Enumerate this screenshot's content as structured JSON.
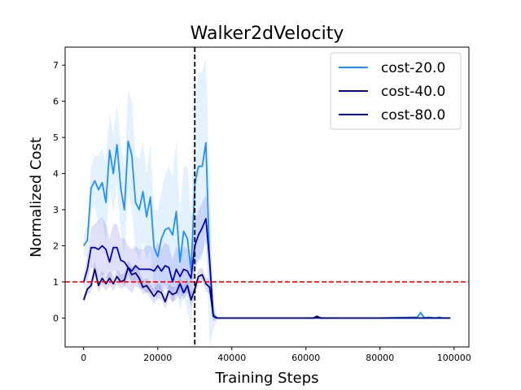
{
  "chart_data": {
    "type": "line",
    "title": "Walker2dVelocity",
    "xlabel": "Training Steps",
    "ylabel": "Normalized Cost",
    "xlim": [
      -5000,
      104000
    ],
    "ylim": [
      -0.8,
      7.5
    ],
    "xticks": [
      0,
      20000,
      40000,
      60000,
      80000,
      100000
    ],
    "yticks": [
      0,
      1,
      2,
      3,
      4,
      5,
      6,
      7
    ],
    "x_tick_labels": [
      "0",
      "20000",
      "40000",
      "60000",
      "80000",
      "100000"
    ],
    "y_tick_labels": [
      "0",
      "1",
      "2",
      "3",
      "4",
      "5",
      "6",
      "7"
    ],
    "grid": false,
    "legend_position": "top-right",
    "reference_lines": [
      {
        "orientation": "horizontal",
        "value": 1.0,
        "color": "#ff0000",
        "style": "dashed"
      },
      {
        "orientation": "vertical",
        "value": 30000,
        "color": "#000000",
        "style": "dashed"
      }
    ],
    "x": [
      0,
      1000,
      2000,
      3000,
      4000,
      5000,
      6000,
      7000,
      8000,
      9000,
      10000,
      11000,
      12000,
      13000,
      14000,
      15000,
      16000,
      17000,
      18000,
      19000,
      20000,
      21000,
      22000,
      23000,
      24000,
      25000,
      26000,
      27000,
      28000,
      29000,
      30000,
      31000,
      32000,
      33000,
      34000,
      35000,
      36000,
      37000,
      40000,
      50000,
      60000,
      62000,
      63000,
      64000,
      70000,
      80000,
      90000,
      91000,
      92000,
      93000,
      95000,
      96000,
      97000,
      99000
    ],
    "series": [
      {
        "name": "cost-20.0",
        "color": "#1e90ff",
        "values": [
          2.0,
          2.15,
          3.6,
          3.8,
          3.55,
          3.75,
          3.2,
          4.65,
          4.0,
          4.8,
          3.6,
          3.0,
          4.9,
          4.5,
          3.2,
          3.0,
          3.5,
          2.8,
          3.35,
          1.95,
          1.7,
          2.2,
          2.45,
          2.5,
          2.3,
          2.95,
          1.55,
          2.4,
          2.2,
          1.3,
          3.7,
          4.2,
          4.2,
          4.85,
          1.5,
          0.1,
          0.0,
          0.0,
          0.0,
          0.0,
          0.0,
          0.0,
          0.02,
          0.0,
          0.0,
          0.0,
          0.02,
          0.15,
          0.0,
          0.02,
          0.0,
          0.02,
          0.0,
          0.0
        ],
        "band_upper": [
          2.3,
          2.6,
          4.2,
          4.5,
          4.5,
          4.7,
          4.3,
          5.7,
          5.1,
          5.9,
          4.8,
          4.2,
          6.3,
          6.0,
          4.5,
          4.4,
          4.9,
          4.0,
          4.8,
          3.0,
          3.0,
          3.5,
          4.0,
          4.2,
          3.9,
          4.9,
          2.9,
          4.2,
          4.2,
          2.9,
          6.0,
          6.8,
          6.8,
          7.2,
          3.8,
          0.5,
          0.05,
          0.02,
          0.02,
          0.02,
          0.02,
          0.03,
          0.06,
          0.03,
          0.02,
          0.02,
          0.06,
          0.25,
          0.05,
          0.06,
          0.03,
          0.06,
          0.03,
          0.02
        ],
        "band_lower": [
          1.7,
          1.7,
          3.0,
          3.1,
          2.6,
          2.8,
          2.1,
          3.6,
          2.9,
          3.7,
          2.4,
          1.8,
          3.5,
          3.0,
          1.9,
          1.6,
          2.1,
          1.6,
          1.9,
          0.9,
          0.4,
          0.9,
          0.9,
          0.8,
          0.7,
          1.0,
          0.2,
          0.6,
          0.2,
          -0.3,
          1.4,
          1.6,
          1.6,
          2.5,
          -0.8,
          -0.3,
          -0.05,
          -0.02,
          -0.02,
          -0.02,
          -0.02,
          -0.03,
          -0.02,
          -0.03,
          -0.02,
          -0.02,
          -0.02,
          0.05,
          -0.05,
          -0.02,
          -0.03,
          -0.02,
          -0.03,
          -0.02
        ]
      },
      {
        "name": "cost-40.0",
        "color": "#0000cd",
        "values": [
          1.0,
          1.35,
          1.95,
          1.95,
          1.9,
          2.0,
          1.9,
          1.55,
          1.95,
          1.95,
          1.6,
          1.55,
          1.4,
          1.3,
          1.45,
          1.35,
          1.35,
          1.35,
          1.35,
          1.3,
          1.45,
          1.3,
          1.45,
          1.4,
          1.0,
          1.35,
          1.15,
          1.35,
          1.3,
          1.1,
          2.0,
          2.3,
          2.5,
          2.75,
          1.6,
          0.05,
          0.0,
          0.0,
          0.0,
          0.0,
          0.0,
          0.0,
          0.0,
          0.0,
          0.0,
          0.0,
          0.0,
          0.0,
          0.0,
          0.0,
          0.0,
          0.0,
          0.0,
          0.0
        ],
        "band_upper": [
          1.2,
          1.7,
          2.5,
          2.6,
          2.7,
          2.8,
          2.6,
          2.2,
          2.6,
          2.6,
          2.2,
          2.2,
          2.0,
          1.9,
          2.0,
          1.9,
          1.9,
          2.0,
          2.0,
          1.9,
          2.1,
          1.9,
          2.1,
          2.0,
          1.6,
          2.0,
          1.8,
          2.0,
          1.9,
          1.7,
          2.7,
          3.0,
          3.2,
          3.4,
          2.2,
          0.2,
          0.02,
          0.02,
          0.02,
          0.02,
          0.02,
          0.02,
          0.02,
          0.02,
          0.02,
          0.02,
          0.02,
          0.02,
          0.02,
          0.02,
          0.02,
          0.02,
          0.02,
          0.02
        ],
        "band_lower": [
          0.8,
          1.0,
          1.4,
          1.3,
          1.1,
          1.2,
          1.2,
          0.9,
          1.3,
          1.3,
          1.0,
          0.9,
          0.8,
          0.7,
          0.9,
          0.8,
          0.8,
          0.7,
          0.7,
          0.7,
          0.8,
          0.7,
          0.8,
          0.8,
          0.4,
          0.7,
          0.5,
          0.7,
          0.7,
          0.5,
          1.3,
          1.6,
          1.8,
          2.1,
          1.0,
          -0.1,
          -0.02,
          -0.02,
          -0.02,
          -0.02,
          -0.02,
          -0.02,
          -0.02,
          -0.02,
          -0.02,
          -0.02,
          -0.02,
          -0.02,
          -0.02,
          -0.02,
          -0.02,
          -0.02,
          -0.02,
          -0.02
        ]
      },
      {
        "name": "cost-80.0",
        "color": "#00008b",
        "values": [
          0.5,
          0.8,
          0.9,
          1.35,
          0.9,
          1.1,
          0.95,
          1.1,
          0.95,
          1.15,
          1.0,
          1.05,
          1.4,
          1.2,
          1.25,
          1.1,
          0.85,
          0.9,
          0.75,
          0.6,
          0.75,
          0.7,
          0.45,
          0.75,
          0.65,
          0.7,
          0.95,
          0.7,
          0.9,
          0.5,
          0.8,
          1.15,
          1.2,
          0.95,
          0.85,
          0.05,
          0.0,
          0.0,
          0.0,
          0.0,
          0.0,
          0.0,
          0.05,
          0.0,
          0.0,
          0.0,
          0.0,
          0.0,
          0.0,
          0.0,
          0.0,
          0.0,
          0.0,
          0.0
        ],
        "band_upper": [
          0.6,
          0.95,
          1.1,
          1.55,
          1.1,
          1.3,
          1.15,
          1.3,
          1.15,
          1.35,
          1.2,
          1.25,
          1.6,
          1.4,
          1.45,
          1.3,
          1.05,
          1.1,
          0.95,
          0.8,
          0.95,
          0.9,
          0.65,
          0.95,
          0.85,
          0.9,
          1.15,
          0.9,
          1.1,
          0.7,
          1.0,
          1.35,
          1.4,
          1.15,
          1.05,
          0.15,
          0.02,
          0.02,
          0.02,
          0.02,
          0.02,
          0.02,
          0.07,
          0.02,
          0.02,
          0.02,
          0.02,
          0.02,
          0.02,
          0.02,
          0.02,
          0.02,
          0.02,
          0.02
        ],
        "band_lower": [
          0.4,
          0.65,
          0.7,
          1.15,
          0.7,
          0.9,
          0.75,
          0.9,
          0.75,
          0.95,
          0.8,
          0.85,
          1.2,
          1.0,
          1.05,
          0.9,
          0.65,
          0.7,
          0.55,
          0.4,
          0.55,
          0.5,
          0.25,
          0.55,
          0.45,
          0.5,
          0.75,
          0.5,
          0.7,
          0.3,
          0.6,
          0.95,
          1.0,
          0.75,
          0.65,
          -0.05,
          -0.02,
          -0.02,
          -0.02,
          -0.02,
          -0.02,
          -0.02,
          0.03,
          -0.02,
          -0.02,
          -0.02,
          -0.02,
          -0.02,
          -0.02,
          -0.02,
          -0.02,
          -0.02,
          -0.02,
          -0.02
        ]
      }
    ]
  }
}
